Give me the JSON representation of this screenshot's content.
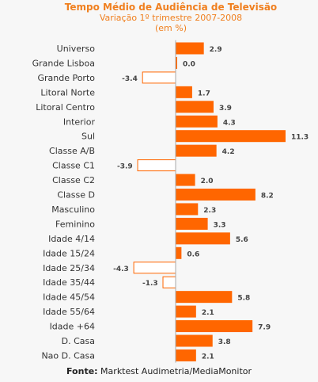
{
  "chart_data": {
    "type": "bar",
    "orientation": "horizontal",
    "title": "Tempo Médio de Audiência  de Televisão",
    "subtitle": "Variação 1º trimestre 2007-2008",
    "subtitle_unit": "(em %)",
    "categories": [
      "Universo",
      "Grande Lisboa",
      "Grande Porto",
      "Litoral Norte",
      "Litoral Centro",
      "Interior",
      "Sul",
      "Classe A/B",
      "Classe C1",
      "Classe C2",
      "Classe D",
      "Masculino",
      "Feminino",
      "Idade 4/14",
      "Idade 15/24",
      "Idade 25/34",
      "Idade 35/44",
      "Idade 45/54",
      "Idade 55/64",
      "Idade +64",
      "D. Casa",
      "Nao D. Casa"
    ],
    "values": [
      2.9,
      0.0,
      -3.4,
      1.7,
      3.9,
      4.3,
      11.3,
      4.2,
      -3.9,
      2.0,
      8.2,
      2.3,
      3.3,
      5.6,
      0.6,
      -4.3,
      -1.3,
      5.8,
      2.1,
      7.9,
      3.8,
      2.1
    ],
    "value_labels": [
      "2.9",
      "0.0",
      "-3.4",
      "1.7",
      "3.9",
      "4.3",
      "11.3",
      "4.2",
      "-3.9",
      "2.0",
      "8.2",
      "2.3",
      "3.3",
      "5.6",
      "0.6",
      "-4.3",
      "-1.3",
      "5.8",
      "2.1",
      "7.9",
      "3.8",
      "2.1"
    ],
    "colors": {
      "positive": "#ff6600",
      "negative_fill": "#ffffff",
      "negative_stroke": "#ff6600",
      "axis": "#aaaaaa",
      "label_text": "#333333",
      "value_text": "#444444"
    }
  },
  "footer": {
    "label": "Fonte:",
    "text": " Marktest Audimetria/MediaMonitor"
  }
}
